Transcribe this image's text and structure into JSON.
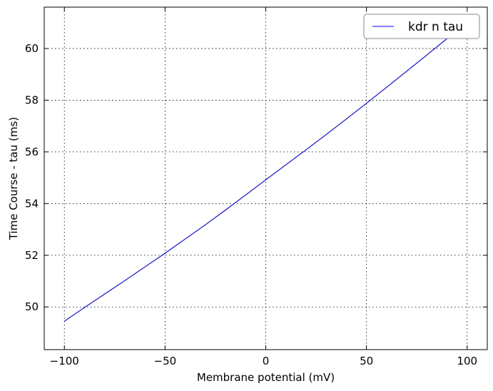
{
  "chart_data": {
    "type": "line",
    "title": "",
    "xlabel": "Membrane potential (mV)",
    "ylabel": "Time Course - tau (ms)",
    "xlim": [
      -110,
      110
    ],
    "ylim": [
      48.35,
      61.6
    ],
    "xticks": [
      -100,
      -50,
      0,
      50,
      100
    ],
    "xtick_labels": [
      "−100",
      "−50",
      "0",
      "50",
      "100"
    ],
    "yticks": [
      50,
      52,
      54,
      56,
      58,
      60
    ],
    "ytick_labels": [
      "50",
      "52",
      "54",
      "56",
      "58",
      "60"
    ],
    "grid": true,
    "legend": "top-right",
    "series": [
      {
        "name": "kdr n tau",
        "color": "#0000ff",
        "x": [
          -100,
          -90,
          -80,
          -70,
          -60,
          -50,
          -40,
          -30,
          -20,
          -10,
          0,
          10,
          20,
          30,
          40,
          50,
          60,
          70,
          80,
          90,
          100
        ],
        "y": [
          49.45,
          49.98,
          50.5,
          51.02,
          51.55,
          52.08,
          52.63,
          53.18,
          53.75,
          54.33,
          54.92,
          55.5,
          56.08,
          56.67,
          57.27,
          57.88,
          58.5,
          59.12,
          59.75,
          60.38,
          60.5
        ]
      }
    ]
  }
}
